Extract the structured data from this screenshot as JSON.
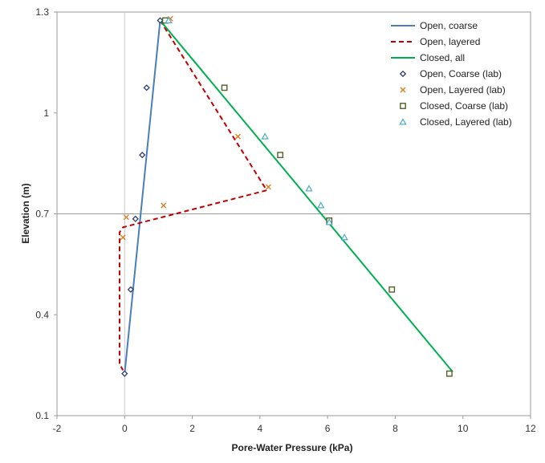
{
  "chart_data": {
    "type": "scatter",
    "title": "",
    "xlabel": "Pore-Water Pressure (kPa)",
    "ylabel": "Elevation (m)",
    "xlim": [
      -2,
      12
    ],
    "ylim": [
      0.1,
      1.3
    ],
    "x_ticks": [
      -2,
      0,
      2,
      4,
      6,
      8,
      10,
      12
    ],
    "y_ticks": [
      0.1,
      0.4,
      0.7,
      1,
      1.3
    ],
    "x_tick_labels": [
      "-2",
      "0",
      "2",
      "4",
      "6",
      "8",
      "10",
      "12"
    ],
    "y_tick_labels": [
      "0.1",
      "0.4",
      "0.7",
      "1",
      "1.3"
    ],
    "grid": "horizontal line at y=0.7",
    "legend_position": "top-right",
    "series": [
      {
        "name": "Open, coarse",
        "kind": "line",
        "style": "solid",
        "color": "#4a7ebb",
        "x": [
          0.0,
          1.05
        ],
        "y": [
          0.225,
          1.275
        ]
      },
      {
        "name": "Open, layered",
        "kind": "line",
        "style": "dashed",
        "color": "#c00000",
        "x": [
          1.05,
          4.2,
          -0.05,
          -0.15,
          -0.15,
          -0.05
        ],
        "y": [
          1.275,
          0.77,
          0.66,
          0.645,
          0.255,
          0.235
        ]
      },
      {
        "name": "Closed, all",
        "kind": "line",
        "style": "solid",
        "color": "#00b050",
        "x": [
          1.05,
          9.7
        ],
        "y": [
          1.275,
          0.23
        ]
      },
      {
        "name": "Open, Coarse (lab)",
        "kind": "marker",
        "marker": "diamond",
        "color": "#2f3e6e",
        "x": [
          0.0,
          0.18,
          0.32,
          0.52,
          0.65,
          1.05
        ],
        "y": [
          0.225,
          0.475,
          0.685,
          0.875,
          1.075,
          1.275
        ]
      },
      {
        "name": "Open, Layered (lab)",
        "kind": "marker",
        "marker": "x",
        "color": "#e07b20",
        "x": [
          -0.05,
          0.05,
          1.15,
          3.35,
          4.25,
          1.35
        ],
        "y": [
          0.63,
          0.69,
          0.725,
          0.93,
          0.78,
          1.28
        ]
      },
      {
        "name": "Closed, Coarse (lab)",
        "kind": "marker",
        "marker": "square",
        "color": "#4f6228",
        "x": [
          1.2,
          2.95,
          4.6,
          6.05,
          7.9,
          9.6
        ],
        "y": [
          1.275,
          1.075,
          0.875,
          0.68,
          0.475,
          0.225
        ]
      },
      {
        "name": "Closed, Layered (lab)",
        "kind": "marker",
        "marker": "triangle",
        "color": "#4bacc6",
        "x": [
          1.3,
          4.15,
          5.45,
          5.8,
          6.05,
          6.5
        ],
        "y": [
          1.275,
          0.93,
          0.775,
          0.725,
          0.675,
          0.63
        ]
      }
    ]
  }
}
